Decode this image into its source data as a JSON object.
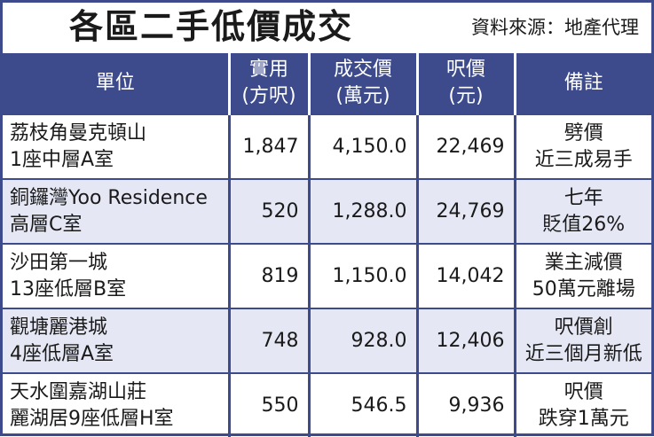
{
  "title": "各區二手低價成交",
  "source": "資料來源：地產代理",
  "headers": {
    "unit": "單位",
    "area_line1": "實用",
    "area_line2": "(方呎)",
    "price_line1": "成交價",
    "price_line2": "(萬元)",
    "psf_line1": "呎價",
    "psf_line2": "(元)",
    "remark": "備註"
  },
  "rows": [
    {
      "unit_line1": "荔枝角曼克頓山",
      "unit_line2": "1座中層A室",
      "area": "1,847",
      "price": "4,150.0",
      "psf": "22,469",
      "remark_line1": "劈價",
      "remark_line2": "近三成易手"
    },
    {
      "unit_line1": "銅鑼灣Yoo Residence",
      "unit_line2": "高層C室",
      "area": "520",
      "price": "1,288.0",
      "psf": "24,769",
      "remark_line1": "七年",
      "remark_line2": "貶值26%"
    },
    {
      "unit_line1": "沙田第一城",
      "unit_line2": "13座低層B室",
      "area": "819",
      "price": "1,150.0",
      "psf": "14,042",
      "remark_line1": "業主減價",
      "remark_line2": "50萬元離場"
    },
    {
      "unit_line1": "觀塘麗港城",
      "unit_line2": "4座低層A室",
      "area": "748",
      "price": "928.0",
      "psf": "12,406",
      "remark_line1": "呎價創",
      "remark_line2": "近三個月新低"
    },
    {
      "unit_line1": "天水圍嘉湖山莊",
      "unit_line2": "麗湖居9座低層H室",
      "area": "550",
      "price": "546.5",
      "psf": "9,936",
      "remark_line1": "呎價",
      "remark_line2": "跌穿1萬元"
    }
  ]
}
